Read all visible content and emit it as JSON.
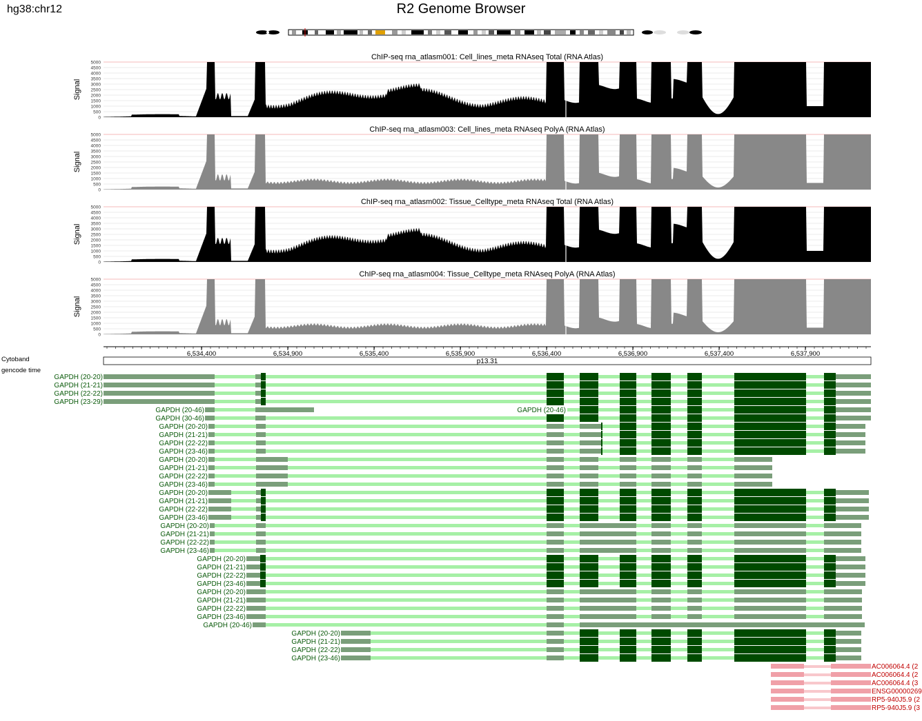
{
  "header": {
    "assembly": "hg38:chr12",
    "title": "R2 Genome Browser"
  },
  "colors": {
    "dark_exon": "#004a00",
    "mid_exon": "#7a9e7a",
    "light_exon": "#a6f0a6",
    "other_gene": "#f0a0a8",
    "other_gene_light": "#f8c8cc",
    "signal_total": "#000000",
    "signal_polya": "#888888"
  },
  "tracks": [
    {
      "title": "ChIP-seq rna_atlasm001: Cell_lines_meta RNAseq Total (RNA Atlas)",
      "ylabel": "Signal",
      "style": "total",
      "yticks": [
        "5000",
        "4500",
        "4000",
        "3500",
        "3000",
        "2500",
        "2000",
        "1500",
        "1000",
        "500",
        "0"
      ]
    },
    {
      "title": "ChIP-seq rna_atlasm003: Cell_lines_meta RNAseq PolyA (RNA Atlas)",
      "ylabel": "Signal",
      "style": "polya",
      "yticks": [
        "5000",
        "4500",
        "4000",
        "3500",
        "3000",
        "2500",
        "2000",
        "1500",
        "1000",
        "500",
        "0"
      ]
    },
    {
      "title": "ChIP-seq rna_atlasm002: Tissue_Celltype_meta RNAseq Total (RNA Atlas)",
      "ylabel": "Signal",
      "style": "total",
      "yticks": [
        "5000",
        "4500",
        "4000",
        "3500",
        "3000",
        "2500",
        "2000",
        "1500",
        "1000",
        "500",
        "0"
      ]
    },
    {
      "title": "ChIP-seq rna_atlasm004: Tissue_Celltype_meta RNAseq PolyA (RNA Atlas)",
      "ylabel": "Signal",
      "style": "polya",
      "yticks": [
        "5000",
        "4500",
        "4000",
        "3500",
        "3000",
        "2500",
        "2000",
        "1500",
        "1000",
        "500",
        "0"
      ]
    }
  ],
  "axis": {
    "ticks": [
      "6,534,400",
      "6,534,900",
      "6,535,400",
      "6,535,900",
      "6,536,400",
      "6,536,900",
      "6,537,400",
      "6,537,900"
    ]
  },
  "cytoband": {
    "label": "Cytoband",
    "band": "p13.31"
  },
  "gencode": {
    "label": "gencode time"
  },
  "genes": [
    {
      "label": "GAPDH (20-20)",
      "style": "A"
    },
    {
      "label": "GAPDH (21-21)",
      "style": "A"
    },
    {
      "label": "GAPDH (22-22)",
      "style": "A"
    },
    {
      "label": "GAPDH (23-29)",
      "style": "A"
    },
    {
      "label": "GAPDH (20-46)",
      "style": "B",
      "label2": "GAPDH (20-46)"
    },
    {
      "label": "GAPDH (30-46)",
      "style": "C"
    },
    {
      "label": "GAPDH (20-20)",
      "style": "D"
    },
    {
      "label": "GAPDH (21-21)",
      "style": "D"
    },
    {
      "label": "GAPDH (22-22)",
      "style": "D"
    },
    {
      "label": "GAPDH (23-46)",
      "style": "D"
    },
    {
      "label": "GAPDH (20-20)",
      "style": "E"
    },
    {
      "label": "GAPDH (21-21)",
      "style": "E"
    },
    {
      "label": "GAPDH (22-22)",
      "style": "E"
    },
    {
      "label": "GAPDH (23-46)",
      "style": "E"
    },
    {
      "label": "GAPDH (20-20)",
      "style": "F"
    },
    {
      "label": "GAPDH (21-21)",
      "style": "F"
    },
    {
      "label": "GAPDH (22-22)",
      "style": "F"
    },
    {
      "label": "GAPDH (23-46)",
      "style": "F"
    },
    {
      "label": "GAPDH (20-20)",
      "style": "G"
    },
    {
      "label": "GAPDH (21-21)",
      "style": "G"
    },
    {
      "label": "GAPDH (22-22)",
      "style": "G"
    },
    {
      "label": "GAPDH (23-46)",
      "style": "G"
    },
    {
      "label": "GAPDH (20-20)",
      "style": "H"
    },
    {
      "label": "GAPDH (21-21)",
      "style": "H"
    },
    {
      "label": "GAPDH (22-22)",
      "style": "H"
    },
    {
      "label": "GAPDH (23-46)",
      "style": "H"
    },
    {
      "label": "GAPDH (20-20)",
      "style": "I"
    },
    {
      "label": "GAPDH (21-21)",
      "style": "I"
    },
    {
      "label": "GAPDH (22-22)",
      "style": "I"
    },
    {
      "label": "GAPDH (23-46)",
      "style": "I"
    },
    {
      "label": "GAPDH (20-46)",
      "style": "J"
    },
    {
      "label": "GAPDH (20-20)",
      "style": "K"
    },
    {
      "label": "GAPDH (21-21)",
      "style": "K"
    },
    {
      "label": "GAPDH (22-22)",
      "style": "K"
    },
    {
      "label": "GAPDH (23-46)",
      "style": "K"
    }
  ],
  "other_genes": [
    {
      "label": "AC006064.4 (2"
    },
    {
      "label": "AC006064.4 (2"
    },
    {
      "label": "AC006064.4 (3"
    },
    {
      "label": "ENSG00000269"
    },
    {
      "label": "RP5-940J5.9 (2"
    },
    {
      "label": "RP5-940J5.9 (3"
    }
  ]
}
